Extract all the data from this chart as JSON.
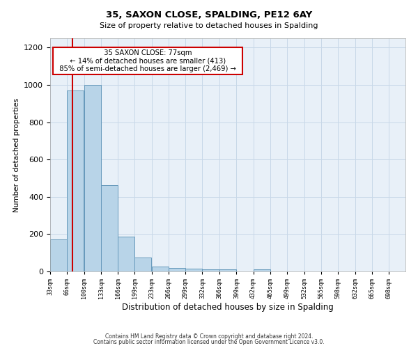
{
  "title": "35, SAXON CLOSE, SPALDING, PE12 6AY",
  "subtitle": "Size of property relative to detached houses in Spalding",
  "xlabel": "Distribution of detached houses by size in Spalding",
  "ylabel": "Number of detached properties",
  "bar_labels": [
    "33sqm",
    "66sqm",
    "100sqm",
    "133sqm",
    "166sqm",
    "199sqm",
    "233sqm",
    "266sqm",
    "299sqm",
    "332sqm",
    "366sqm",
    "399sqm",
    "432sqm",
    "465sqm",
    "499sqm",
    "532sqm",
    "565sqm",
    "598sqm",
    "632sqm",
    "665sqm",
    "698sqm"
  ],
  "bar_values": [
    170,
    970,
    1000,
    462,
    185,
    75,
    25,
    18,
    15,
    10,
    10,
    0,
    10,
    0,
    0,
    0,
    0,
    0,
    0,
    0,
    0
  ],
  "bar_color": "#b8d4e8",
  "bar_edge_color": "#6699bb",
  "property_line_x": 77,
  "xlim_left": 33,
  "xlim_right": 731,
  "ylim": [
    0,
    1250
  ],
  "yticks": [
    0,
    200,
    400,
    600,
    800,
    1000,
    1200
  ],
  "annotation_title": "35 SAXON CLOSE: 77sqm",
  "annotation_line1": "← 14% of detached houses are smaller (413)",
  "annotation_line2": "85% of semi-detached houses are larger (2,469) →",
  "annotation_box_color": "#ffffff",
  "annotation_box_edge": "#cc0000",
  "property_line_color": "#cc0000",
  "footer_line1": "Contains HM Land Registry data © Crown copyright and database right 2024.",
  "footer_line2": "Contains public sector information licensed under the Open Government Licence v3.0.",
  "bin_width": 33,
  "bg_color": "#e8f0f8",
  "grid_color": "#c8d8e8"
}
